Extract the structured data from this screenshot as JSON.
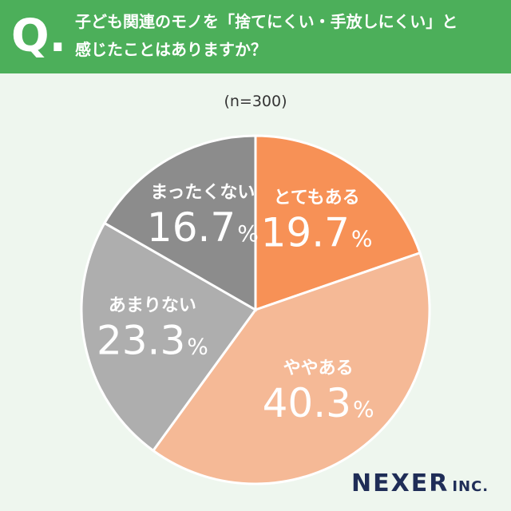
{
  "header": {
    "q_mark": "Q.",
    "question_line1": "子ども関連のモノを「捨てにくい・手放しにくい」と",
    "question_line2": "感じたことはありますか？"
  },
  "sample_label": "(n=300)",
  "logo": {
    "main": "NEXER",
    "suffix": "INC."
  },
  "colors": {
    "header_bg": "#4caf5a",
    "background": "#eef6ee"
  },
  "chart_data": {
    "type": "pie",
    "title": "",
    "unit": "%",
    "start_angle_deg": 0,
    "direction": "clockwise",
    "slices": [
      {
        "label": "とてもある",
        "value": 19.7,
        "value_text": "19.7",
        "color": "#f79156"
      },
      {
        "label": "ややある",
        "value": 40.3,
        "value_text": "40.3",
        "color": "#f5b996"
      },
      {
        "label": "あまりない",
        "value": 23.3,
        "value_text": "23.3",
        "color": "#aeaeae"
      },
      {
        "label": "まったくない",
        "value": 16.7,
        "value_text": "16.7",
        "color": "#8c8c8c"
      }
    ]
  }
}
